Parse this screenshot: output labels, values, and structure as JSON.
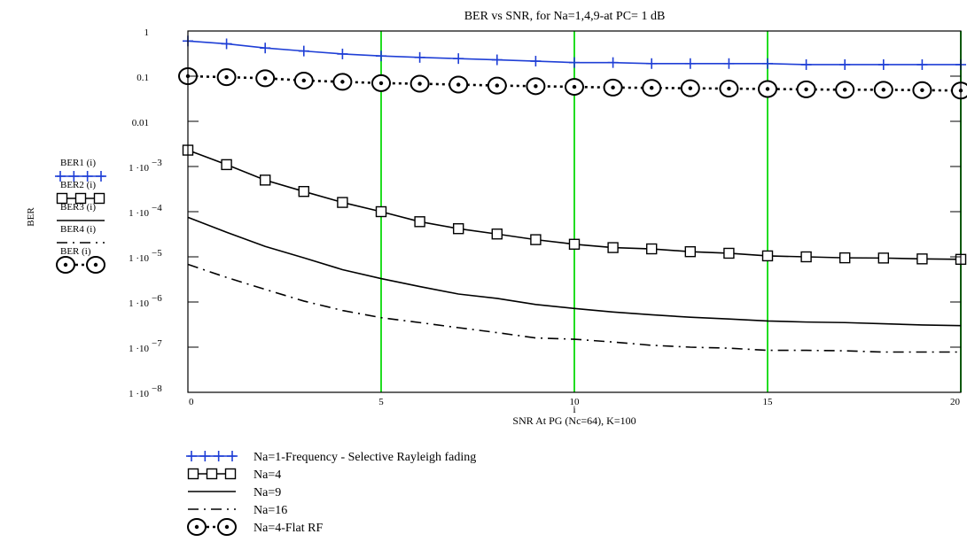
{
  "chart_data": {
    "type": "line",
    "title": "BER vs SNR, for Na=1,4,9-at PC= 1 dB",
    "xlabel_index": "i",
    "xlabel": "SNR At PG (Nc=64), K=100",
    "ylabel": "BER",
    "xlim": [
      0,
      20
    ],
    "ylim": [
      1e-08,
      1
    ],
    "y_scale": "log",
    "x_ticks": [
      "0",
      "5",
      "10",
      "15",
      "20"
    ],
    "y_ticks": [
      {
        "value": 1,
        "main": "1",
        "exp": ""
      },
      {
        "value": 0.1,
        "main": "0.1",
        "exp": ""
      },
      {
        "value": 0.01,
        "main": "0.01",
        "exp": ""
      },
      {
        "value": 0.001,
        "main": "1 ·10",
        "exp": "−3"
      },
      {
        "value": 0.0001,
        "main": "1 ·10",
        "exp": "−4"
      },
      {
        "value": 1e-05,
        "main": "1 ·10",
        "exp": "−5"
      },
      {
        "value": 1e-06,
        "main": "1 ·10",
        "exp": "−6"
      },
      {
        "value": 1e-07,
        "main": "1 ·10",
        "exp": "−7"
      },
      {
        "value": 1e-08,
        "main": "1 ·10",
        "exp": "−8"
      }
    ],
    "vertical_gridlines": [
      5,
      10,
      15,
      20
    ],
    "gridline_color": "#22dd22",
    "x": [
      0,
      1,
      2,
      3,
      4,
      5,
      6,
      7,
      8,
      9,
      10,
      11,
      12,
      13,
      14,
      15,
      16,
      17,
      18,
      19,
      20
    ],
    "series": [
      {
        "name": "BER1",
        "trace_label": "BER1   (i)",
        "legend": "Na=1-Frequency -   Selective Rayleigh fading",
        "color": "#1f3fd6",
        "marker": "plus",
        "dash": "solid",
        "values": [
          0.6,
          0.52,
          0.42,
          0.36,
          0.31,
          0.28,
          0.26,
          0.245,
          0.23,
          0.215,
          0.2,
          0.2,
          0.19,
          0.19,
          0.19,
          0.19,
          0.18,
          0.18,
          0.18,
          0.18,
          0.18
        ]
      },
      {
        "name": "BER2",
        "trace_label": "BER2   (i)",
        "legend": "Na=4",
        "color": "#000000",
        "marker": "square",
        "dash": "solid",
        "values": [
          0.0023,
          0.0011,
          0.0005,
          0.00028,
          0.00016,
          0.0001,
          6e-05,
          4.2e-05,
          3.2e-05,
          2.4e-05,
          1.9e-05,
          1.6e-05,
          1.5e-05,
          1.3e-05,
          1.2e-05,
          1.05e-05,
          1e-05,
          9.5e-06,
          9.4e-06,
          9e-06,
          8.8e-06
        ]
      },
      {
        "name": "BER3",
        "trace_label": "BER3   (i)",
        "legend": "Na=9",
        "color": "#000000",
        "marker": "none",
        "dash": "solid",
        "values": [
          7.5e-05,
          3.5e-05,
          1.7e-05,
          9.5e-06,
          5.2e-06,
          3.3e-06,
          2.2e-06,
          1.5e-06,
          1.2e-06,
          8.8e-07,
          7.2e-07,
          6e-07,
          5.2e-07,
          4.6e-07,
          4.2e-07,
          3.8e-07,
          3.6e-07,
          3.5e-07,
          3.3e-07,
          3.1e-07,
          3e-07
        ]
      },
      {
        "name": "BER4",
        "trace_label": "BER4   (i)",
        "legend": "Na=16",
        "color": "#000000",
        "marker": "none",
        "dash": "dashdot",
        "values": [
          6.8e-06,
          3.5e-06,
          1.9e-06,
          1.05e-06,
          6.5e-07,
          4.5e-07,
          3.5e-07,
          2.7e-07,
          2.1e-07,
          1.6e-07,
          1.5e-07,
          1.3e-07,
          1.1e-07,
          1e-07,
          9.5e-08,
          8.5e-08,
          8.5e-08,
          8.3e-08,
          7.8e-08,
          7.8e-08,
          7.8e-08
        ]
      },
      {
        "name": "BER",
        "trace_label": "BER   (i)",
        "legend": "Na=4-Flat RF",
        "color": "#000000",
        "marker": "circle-dot",
        "dash": "dotted",
        "values": [
          0.1,
          0.095,
          0.09,
          0.08,
          0.075,
          0.07,
          0.068,
          0.065,
          0.062,
          0.06,
          0.058,
          0.056,
          0.055,
          0.054,
          0.053,
          0.052,
          0.051,
          0.05,
          0.05,
          0.049,
          0.048
        ]
      }
    ]
  }
}
